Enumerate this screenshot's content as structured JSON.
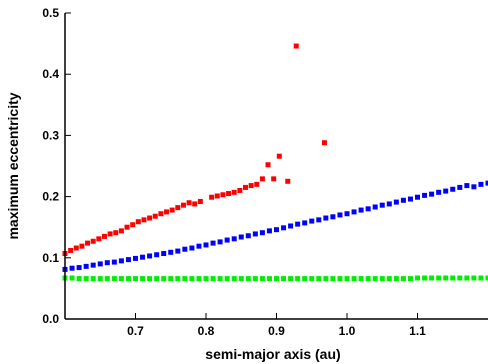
{
  "chart_data": {
    "type": "scatter",
    "title": "",
    "xlabel": "semi-major axis (au)",
    "ylabel": "maximum eccentricity",
    "xlim": [
      0.6,
      1.2
    ],
    "ylim": [
      0.0,
      0.5
    ],
    "x_ticks": [
      0.7,
      0.8,
      0.9,
      1.0,
      1.1
    ],
    "x_tick_labels": [
      "0.7",
      "0.8",
      "0.9",
      "1.0",
      "1.1"
    ],
    "y_ticks": [
      0.0,
      0.1,
      0.2,
      0.3,
      0.4,
      0.5
    ],
    "y_tick_labels": [
      "0.0",
      "0.1",
      "0.2",
      "0.3",
      "0.4",
      "0.5"
    ],
    "grid": false,
    "legend": "none",
    "series": [
      {
        "color": "#ff0000",
        "marker": "square",
        "points": [
          [
            0.6,
            0.107
          ],
          [
            0.608,
            0.112
          ],
          [
            0.616,
            0.116
          ],
          [
            0.624,
            0.119
          ],
          [
            0.632,
            0.124
          ],
          [
            0.64,
            0.127
          ],
          [
            0.648,
            0.131
          ],
          [
            0.656,
            0.135
          ],
          [
            0.664,
            0.139
          ],
          [
            0.672,
            0.141
          ],
          [
            0.68,
            0.144
          ],
          [
            0.688,
            0.15
          ],
          [
            0.696,
            0.154
          ],
          [
            0.704,
            0.159
          ],
          [
            0.712,
            0.162
          ],
          [
            0.72,
            0.165
          ],
          [
            0.728,
            0.168
          ],
          [
            0.736,
            0.172
          ],
          [
            0.744,
            0.175
          ],
          [
            0.752,
            0.178
          ],
          [
            0.76,
            0.182
          ],
          [
            0.768,
            0.186
          ],
          [
            0.776,
            0.19
          ],
          [
            0.784,
            0.188
          ],
          [
            0.792,
            0.192
          ],
          [
            0.808,
            0.199
          ],
          [
            0.816,
            0.201
          ],
          [
            0.824,
            0.203
          ],
          [
            0.832,
            0.205
          ],
          [
            0.84,
            0.207
          ],
          [
            0.848,
            0.21
          ],
          [
            0.856,
            0.215
          ],
          [
            0.864,
            0.218
          ],
          [
            0.872,
            0.22
          ],
          [
            0.88,
            0.229
          ],
          [
            0.888,
            0.252
          ],
          [
            0.896,
            0.229
          ],
          [
            0.904,
            0.266
          ],
          [
            0.916,
            0.225
          ],
          [
            0.928,
            0.446
          ],
          [
            0.968,
            0.288
          ]
        ]
      },
      {
        "color": "#0000ff",
        "marker": "square",
        "points": [
          [
            0.6,
            0.081
          ],
          [
            0.61,
            0.083
          ],
          [
            0.62,
            0.084
          ],
          [
            0.63,
            0.086
          ],
          [
            0.64,
            0.088
          ],
          [
            0.65,
            0.09
          ],
          [
            0.66,
            0.092
          ],
          [
            0.67,
            0.093
          ],
          [
            0.68,
            0.095
          ],
          [
            0.69,
            0.097
          ],
          [
            0.7,
            0.099
          ],
          [
            0.71,
            0.101
          ],
          [
            0.72,
            0.103
          ],
          [
            0.73,
            0.105
          ],
          [
            0.74,
            0.107
          ],
          [
            0.75,
            0.109
          ],
          [
            0.76,
            0.111
          ],
          [
            0.77,
            0.114
          ],
          [
            0.78,
            0.116
          ],
          [
            0.79,
            0.119
          ],
          [
            0.8,
            0.121
          ],
          [
            0.81,
            0.124
          ],
          [
            0.82,
            0.126
          ],
          [
            0.83,
            0.129
          ],
          [
            0.84,
            0.131
          ],
          [
            0.85,
            0.134
          ],
          [
            0.86,
            0.136
          ],
          [
            0.87,
            0.139
          ],
          [
            0.88,
            0.141
          ],
          [
            0.89,
            0.144
          ],
          [
            0.9,
            0.146
          ],
          [
            0.91,
            0.149
          ],
          [
            0.92,
            0.152
          ],
          [
            0.93,
            0.155
          ],
          [
            0.94,
            0.157
          ],
          [
            0.95,
            0.16
          ],
          [
            0.96,
            0.162
          ],
          [
            0.97,
            0.165
          ],
          [
            0.98,
            0.167
          ],
          [
            0.99,
            0.17
          ],
          [
            1.0,
            0.172
          ],
          [
            1.01,
            0.175
          ],
          [
            1.02,
            0.178
          ],
          [
            1.03,
            0.18
          ],
          [
            1.04,
            0.183
          ],
          [
            1.05,
            0.186
          ],
          [
            1.06,
            0.188
          ],
          [
            1.07,
            0.191
          ],
          [
            1.08,
            0.194
          ],
          [
            1.09,
            0.196
          ],
          [
            1.1,
            0.199
          ],
          [
            1.11,
            0.202
          ],
          [
            1.12,
            0.204
          ],
          [
            1.13,
            0.207
          ],
          [
            1.14,
            0.209
          ],
          [
            1.15,
            0.212
          ],
          [
            1.16,
            0.215
          ],
          [
            1.17,
            0.218
          ],
          [
            1.18,
            0.216
          ],
          [
            1.19,
            0.22
          ],
          [
            1.2,
            0.222
          ]
        ]
      },
      {
        "color": "#00ee00",
        "marker": "square",
        "points": [
          [
            0.6,
            0.067
          ],
          [
            0.61,
            0.067
          ],
          [
            0.62,
            0.066
          ],
          [
            0.63,
            0.066
          ],
          [
            0.64,
            0.066
          ],
          [
            0.65,
            0.066
          ],
          [
            0.66,
            0.066
          ],
          [
            0.67,
            0.066
          ],
          [
            0.68,
            0.066
          ],
          [
            0.69,
            0.066
          ],
          [
            0.7,
            0.066
          ],
          [
            0.71,
            0.066
          ],
          [
            0.72,
            0.066
          ],
          [
            0.73,
            0.066
          ],
          [
            0.74,
            0.066
          ],
          [
            0.75,
            0.066
          ],
          [
            0.76,
            0.066
          ],
          [
            0.77,
            0.066
          ],
          [
            0.78,
            0.066
          ],
          [
            0.79,
            0.066
          ],
          [
            0.8,
            0.066
          ],
          [
            0.81,
            0.066
          ],
          [
            0.82,
            0.066
          ],
          [
            0.83,
            0.066
          ],
          [
            0.84,
            0.066
          ],
          [
            0.85,
            0.066
          ],
          [
            0.86,
            0.066
          ],
          [
            0.87,
            0.066
          ],
          [
            0.88,
            0.066
          ],
          [
            0.89,
            0.066
          ],
          [
            0.9,
            0.066
          ],
          [
            0.91,
            0.066
          ],
          [
            0.92,
            0.066
          ],
          [
            0.93,
            0.066
          ],
          [
            0.94,
            0.066
          ],
          [
            0.95,
            0.066
          ],
          [
            0.96,
            0.066
          ],
          [
            0.97,
            0.066
          ],
          [
            0.98,
            0.066
          ],
          [
            0.99,
            0.066
          ],
          [
            1.0,
            0.066
          ],
          [
            1.01,
            0.066
          ],
          [
            1.02,
            0.066
          ],
          [
            1.03,
            0.066
          ],
          [
            1.04,
            0.066
          ],
          [
            1.05,
            0.066
          ],
          [
            1.06,
            0.066
          ],
          [
            1.07,
            0.066
          ],
          [
            1.08,
            0.066
          ],
          [
            1.09,
            0.066
          ],
          [
            1.1,
            0.067
          ],
          [
            1.11,
            0.067
          ],
          [
            1.12,
            0.067
          ],
          [
            1.13,
            0.067
          ],
          [
            1.14,
            0.067
          ],
          [
            1.15,
            0.067
          ],
          [
            1.16,
            0.067
          ],
          [
            1.17,
            0.067
          ],
          [
            1.18,
            0.067
          ],
          [
            1.19,
            0.067
          ],
          [
            1.2,
            0.067
          ]
        ]
      }
    ]
  }
}
